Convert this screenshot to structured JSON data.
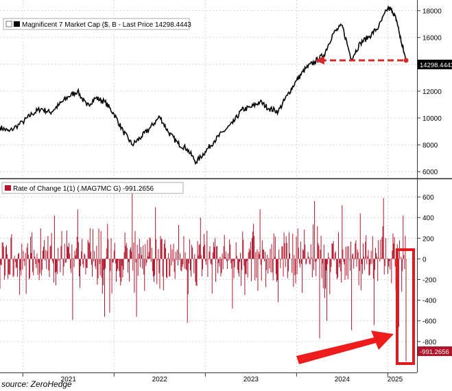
{
  "source": "source: ZeroHedge",
  "chart_data": [
    {
      "type": "line",
      "legend": "Magnificent 7 Market Cap ($, B - Last Price 14298.4443",
      "last_value_label": "14298.4443",
      "ylim": [
        5600,
        18800
      ],
      "yticks": [
        6000,
        8000,
        10000,
        12000,
        14000,
        16000,
        18000
      ],
      "grid": true,
      "color": "#000000",
      "x": [
        2020.75,
        2020.85,
        2021.0,
        2021.1,
        2021.2,
        2021.3,
        2021.4,
        2021.5,
        2021.6,
        2021.7,
        2021.8,
        2021.9,
        2022.0,
        2022.1,
        2022.2,
        2022.3,
        2022.4,
        2022.5,
        2022.6,
        2022.7,
        2022.8,
        2022.9,
        2023.0,
        2023.1,
        2023.2,
        2023.3,
        2023.4,
        2023.5,
        2023.6,
        2023.7,
        2023.8,
        2023.9,
        2024.0,
        2024.1,
        2024.2,
        2024.3,
        2024.4,
        2024.5,
        2024.6,
        2024.7,
        2024.8,
        2024.9,
        2025.0,
        2025.05,
        2025.1,
        2025.15,
        2025.2
      ],
      "y": [
        9300,
        9000,
        9700,
        10300,
        10700,
        10400,
        11000,
        11600,
        12000,
        10900,
        11500,
        11200,
        10300,
        9000,
        8000,
        8600,
        9300,
        10100,
        8900,
        8100,
        7700,
        6700,
        7500,
        8300,
        9000,
        9600,
        10600,
        10800,
        11200,
        10700,
        10500,
        11700,
        12800,
        13700,
        14200,
        14700,
        16300,
        16900,
        14400,
        15600,
        16100,
        16800,
        18200,
        18000,
        17200,
        15600,
        14298.4443
      ],
      "annotation": {
        "from_x": 2025.2,
        "to_x": 2024.2,
        "y": 14298.4443,
        "color": "#d42a2a"
      }
    },
    {
      "type": "bar",
      "legend": "Rate of Change 1(1) (.MAG7MC G) -991.2656",
      "last_value_label": "-991.2656",
      "ylim": [
        -1100,
        760
      ],
      "yticks": [
        -800,
        -600,
        -400,
        -200,
        0,
        200,
        400,
        600
      ],
      "grid": true,
      "color": "#b3142a",
      "x_range": [
        2020.75,
        2025.2
      ],
      "n_bars": 560,
      "amplitude": 260,
      "spikes": [
        {
          "x": 2021.35,
          "v": 420
        },
        {
          "x": 2021.55,
          "v": -590
        },
        {
          "x": 2021.6,
          "v": 480
        },
        {
          "x": 2021.9,
          "v": -560
        },
        {
          "x": 2021.95,
          "v": -520
        },
        {
          "x": 2022.2,
          "v": 650
        },
        {
          "x": 2022.25,
          "v": -560
        },
        {
          "x": 2022.45,
          "v": 500
        },
        {
          "x": 2022.8,
          "v": -620
        },
        {
          "x": 2022.95,
          "v": 400
        },
        {
          "x": 2023.3,
          "v": -480
        },
        {
          "x": 2023.6,
          "v": 480
        },
        {
          "x": 2023.8,
          "v": -420
        },
        {
          "x": 2024.2,
          "v": 560
        },
        {
          "x": 2024.25,
          "v": -770
        },
        {
          "x": 2024.33,
          "v": -600
        },
        {
          "x": 2024.5,
          "v": 520
        },
        {
          "x": 2024.6,
          "v": -690
        },
        {
          "x": 2024.7,
          "v": 440
        },
        {
          "x": 2024.85,
          "v": -640
        },
        {
          "x": 2024.95,
          "v": 590
        },
        {
          "x": 2025.12,
          "v": -660
        },
        {
          "x": 2025.17,
          "v": 420
        },
        {
          "x": 2025.2,
          "v": -991.2656
        }
      ],
      "highlight_x": 2025.2
    }
  ],
  "x_axis": {
    "labels": [
      {
        "x": 2021.5,
        "text": "2021"
      },
      {
        "x": 2022.5,
        "text": "2022"
      },
      {
        "x": 2023.5,
        "text": "2023"
      },
      {
        "x": 2024.5,
        "text": "2024"
      },
      {
        "x": 2025.08,
        "text": "2025"
      }
    ],
    "separators": [
      2021.0,
      2022.0,
      2023.0,
      2024.0,
      2025.0
    ]
  }
}
